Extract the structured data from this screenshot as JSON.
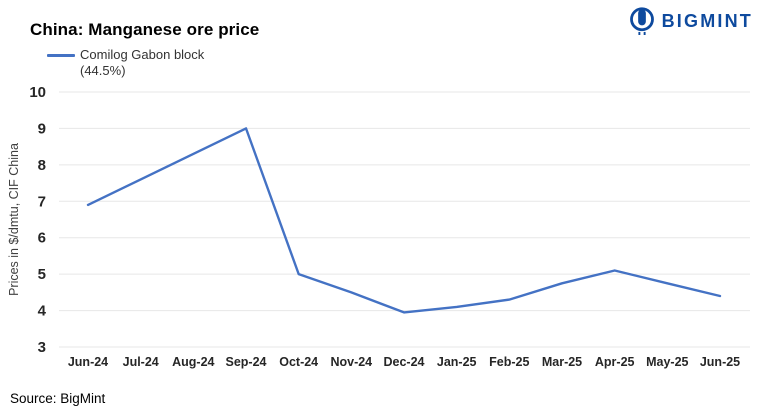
{
  "header": {
    "title": "China: Manganese ore price",
    "logo_text": "BIGMINT"
  },
  "legend": {
    "line1": "Comilog Gabon block",
    "line2": "(44.5%)"
  },
  "footer": {
    "source": "Source: BigMint"
  },
  "colors": {
    "series_line": "#4472c4",
    "logo_blue": "#0e4a9e",
    "gridline": "#e7e7e7",
    "tick_text": "#262626",
    "axis_title_text": "#3f3f3f"
  },
  "chart_data": {
    "type": "line",
    "title": "China: Manganese ore price",
    "xlabel": "",
    "ylabel": "Prices in $/dmtu, CIF China",
    "ylim": [
      3,
      10
    ],
    "yticks": [
      3,
      4,
      5,
      6,
      7,
      8,
      9,
      10
    ],
    "grid": "horizontal",
    "legend": [
      "Comilog Gabon block (44.5%)"
    ],
    "legend_position": "top-left",
    "source": "BigMint",
    "categories": [
      "Jun-24",
      "Jul-24",
      "Aug-24",
      "Sep-24",
      "Oct-24",
      "Nov-24",
      "Dec-24",
      "Jan-25",
      "Feb-25",
      "Mar-25",
      "Apr-25",
      "May-25",
      "Jun-25"
    ],
    "series": [
      {
        "name": "Comilog Gabon block (44.5%)",
        "color": "#4472c4",
        "values": [
          6.9,
          7.6,
          8.3,
          9.0,
          5.0,
          4.5,
          3.95,
          4.1,
          4.3,
          4.75,
          5.1,
          4.75,
          4.4
        ]
      }
    ]
  }
}
